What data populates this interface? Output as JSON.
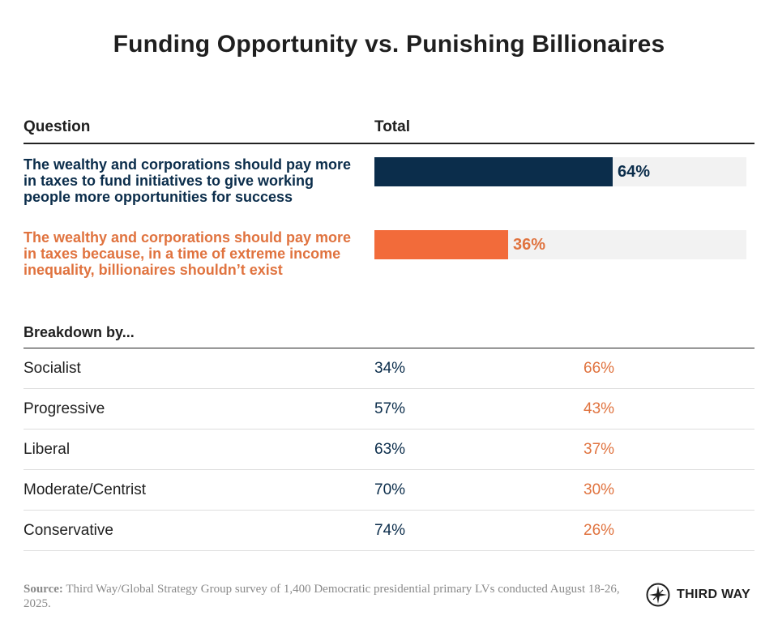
{
  "chart_data": {
    "type": "bar",
    "title": "Funding Opportunity vs. Punishing Billionaires",
    "column_headers": {
      "question": "Question",
      "total": "Total"
    },
    "xlim": [
      0,
      100
    ],
    "colors": {
      "opportunity": "#0b2d4b",
      "billionaires": "#f26b3a",
      "track": "#f2f2f2"
    },
    "series": [
      {
        "name": "The wealthy and corporations should pay more in taxes to fund initiatives to give working people more opportunities for success",
        "value": 64,
        "label": "64%"
      },
      {
        "name": "The wealthy and corporations should pay more in taxes because, in a time of extreme income inequality, billionaires shouldn’t exist",
        "value": 36,
        "label": "36%"
      }
    ],
    "breakdown": {
      "heading": "Breakdown by...",
      "rows": [
        {
          "group": "Socialist",
          "opportunity": "34%",
          "billionaires": "66%"
        },
        {
          "group": "Progressive",
          "opportunity": "57%",
          "billionaires": "43%"
        },
        {
          "group": "Liberal",
          "opportunity": "63%",
          "billionaires": "37%"
        },
        {
          "group": "Moderate/Centrist",
          "opportunity": "70%",
          "billionaires": "30%"
        },
        {
          "group": "Conservative",
          "opportunity": "74%",
          "billionaires": "26%"
        }
      ]
    }
  },
  "source": {
    "label": "Source:",
    "text": "Third Way/Global Strategy Group survey of 1,400 Democratic presidential primary LVs conducted August 18-26, 2025."
  },
  "logo": {
    "text": "THIRD WAY",
    "icon": "compass-star-icon"
  }
}
